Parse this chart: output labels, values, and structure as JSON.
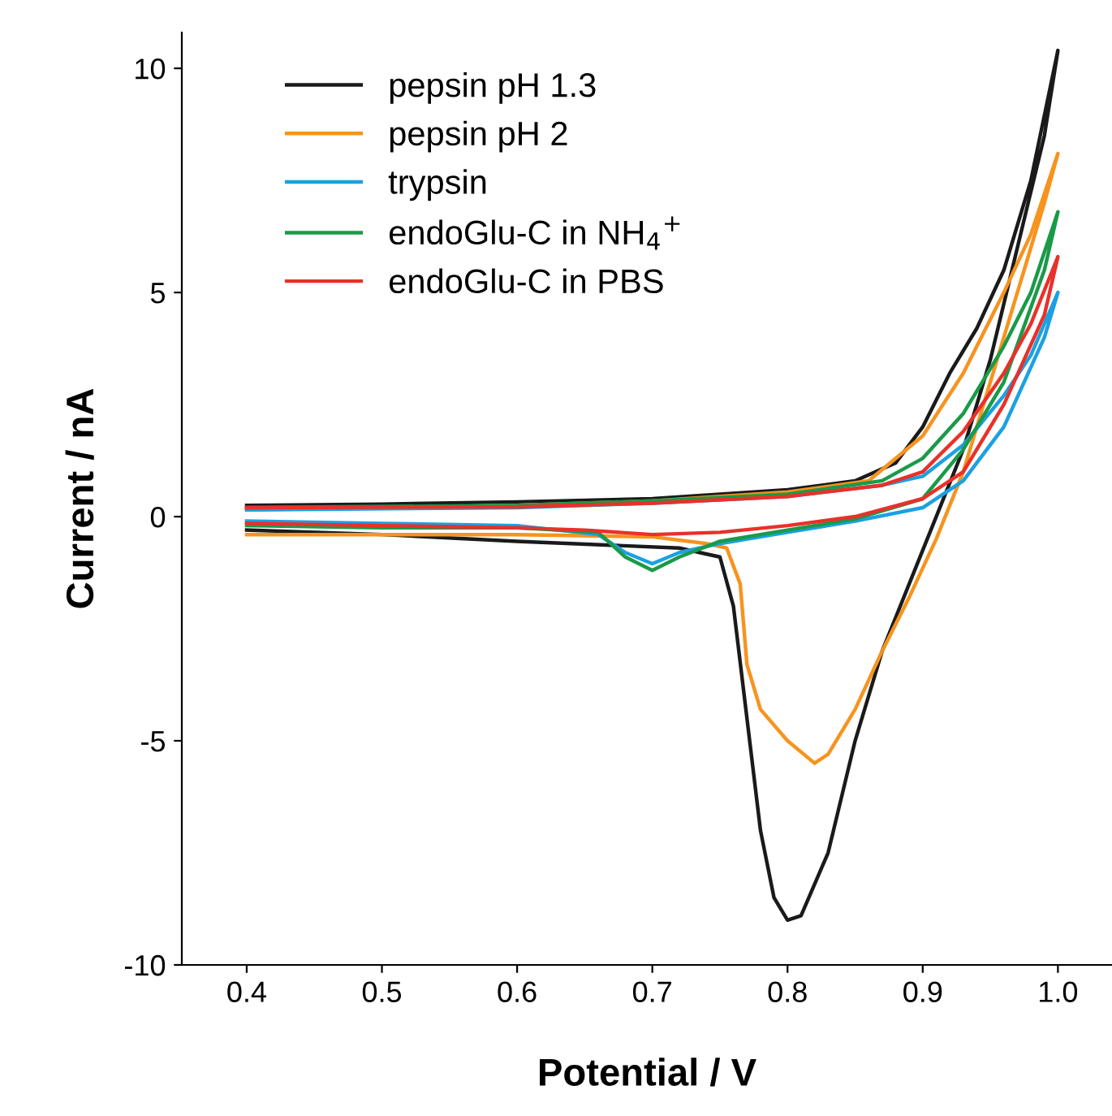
{
  "chart_data": {
    "type": "line",
    "xlabel": "Potential / V",
    "ylabel": "Current / nA",
    "xlim": [
      0.352,
      1.04
    ],
    "ylim": [
      -10,
      10.8
    ],
    "xticks": [
      0.4,
      0.5,
      0.6,
      0.7,
      0.8,
      0.9,
      {
        "value": 1.0,
        "label": "1.0"
      }
    ],
    "yticks": [
      -10,
      -5,
      0,
      5,
      10
    ],
    "grid": false,
    "legend": "top left",
    "line_style": "solid",
    "series": [
      {
        "name": "pepsin pH 1.3",
        "color": "#1a1a1a",
        "x": [
          0.4,
          0.5,
          0.6,
          0.7,
          0.8,
          0.85,
          0.88,
          0.9,
          0.92,
          0.94,
          0.96,
          0.98,
          1.0,
          0.99,
          0.97,
          0.95,
          0.93,
          0.91,
          0.89,
          0.87,
          0.85,
          0.83,
          0.81,
          0.8,
          0.79,
          0.78,
          0.77,
          0.76,
          0.75,
          0.72,
          0.6,
          0.5,
          0.4
        ],
        "values": [
          0.25,
          0.28,
          0.33,
          0.4,
          0.6,
          0.8,
          1.2,
          2.0,
          3.2,
          4.2,
          5.5,
          7.5,
          10.4,
          8.5,
          6,
          3.5,
          1.5,
          0,
          -1.5,
          -3,
          -5,
          -7.5,
          -8.9,
          -9.0,
          -8.5,
          -7,
          -4.5,
          -2,
          -0.9,
          -0.7,
          -0.55,
          -0.4,
          -0.3
        ]
      },
      {
        "name": "pepsin pH 2",
        "color": "#f7931e",
        "x": [
          0.4,
          0.6,
          0.7,
          0.8,
          0.86,
          0.9,
          0.93,
          0.96,
          0.98,
          1.0,
          0.99,
          0.97,
          0.95,
          0.93,
          0.91,
          0.89,
          0.87,
          0.85,
          0.83,
          0.82,
          0.8,
          0.78,
          0.77,
          0.765,
          0.755,
          0.74,
          0.7,
          0.6,
          0.5,
          0.4
        ],
        "values": [
          0.15,
          0.25,
          0.35,
          0.55,
          0.8,
          1.8,
          3.2,
          5,
          6.3,
          8.1,
          7,
          5,
          3,
          1,
          -0.5,
          -1.8,
          -3,
          -4.3,
          -5.3,
          -5.5,
          -5.0,
          -4.3,
          -3.3,
          -1.5,
          -0.7,
          -0.6,
          -0.45,
          -0.4,
          -0.4,
          -0.4
        ]
      },
      {
        "name": "trypsin",
        "color": "#1ba1e2",
        "x": [
          0.4,
          0.6,
          0.7,
          0.8,
          0.87,
          0.9,
          0.93,
          0.96,
          0.98,
          1.0,
          0.99,
          0.96,
          0.93,
          0.9,
          0.85,
          0.8,
          0.75,
          0.72,
          0.7,
          0.68,
          0.66,
          0.6,
          0.5,
          0.4
        ],
        "values": [
          0.15,
          0.2,
          0.3,
          0.45,
          0.7,
          0.9,
          1.6,
          2.7,
          3.6,
          5.0,
          4,
          2,
          0.8,
          0.2,
          -0.1,
          -0.35,
          -0.6,
          -0.8,
          -1.05,
          -0.8,
          -0.4,
          -0.2,
          -0.15,
          -0.1
        ]
      },
      {
        "name": "endoGlu-C in NH$_{4}$$^{+}$",
        "color": "#1a9a48",
        "x": [
          0.4,
          0.6,
          0.7,
          0.8,
          0.87,
          0.9,
          0.93,
          0.96,
          0.98,
          1.0,
          0.99,
          0.96,
          0.93,
          0.9,
          0.85,
          0.8,
          0.75,
          0.72,
          0.7,
          0.68,
          0.66,
          0.6,
          0.5,
          0.4
        ],
        "values": [
          0.2,
          0.25,
          0.35,
          0.5,
          0.8,
          1.3,
          2.3,
          3.8,
          5,
          6.8,
          5.5,
          3,
          1.5,
          0.4,
          -0.05,
          -0.3,
          -0.55,
          -0.9,
          -1.2,
          -0.9,
          -0.35,
          -0.25,
          -0.25,
          -0.2
        ]
      },
      {
        "name": "endoGlu-C in PBS",
        "color": "#e8312a",
        "x": [
          0.4,
          0.6,
          0.7,
          0.8,
          0.87,
          0.9,
          0.93,
          0.96,
          0.98,
          1.0,
          0.99,
          0.96,
          0.93,
          0.9,
          0.85,
          0.8,
          0.75,
          0.7,
          0.65,
          0.6,
          0.5,
          0.4
        ],
        "values": [
          0.2,
          0.22,
          0.3,
          0.45,
          0.7,
          1.0,
          1.9,
          3.2,
          4.3,
          5.8,
          4.5,
          2.5,
          1.0,
          0.4,
          0.0,
          -0.2,
          -0.35,
          -0.4,
          -0.3,
          -0.25,
          -0.2,
          -0.15
        ]
      }
    ]
  }
}
